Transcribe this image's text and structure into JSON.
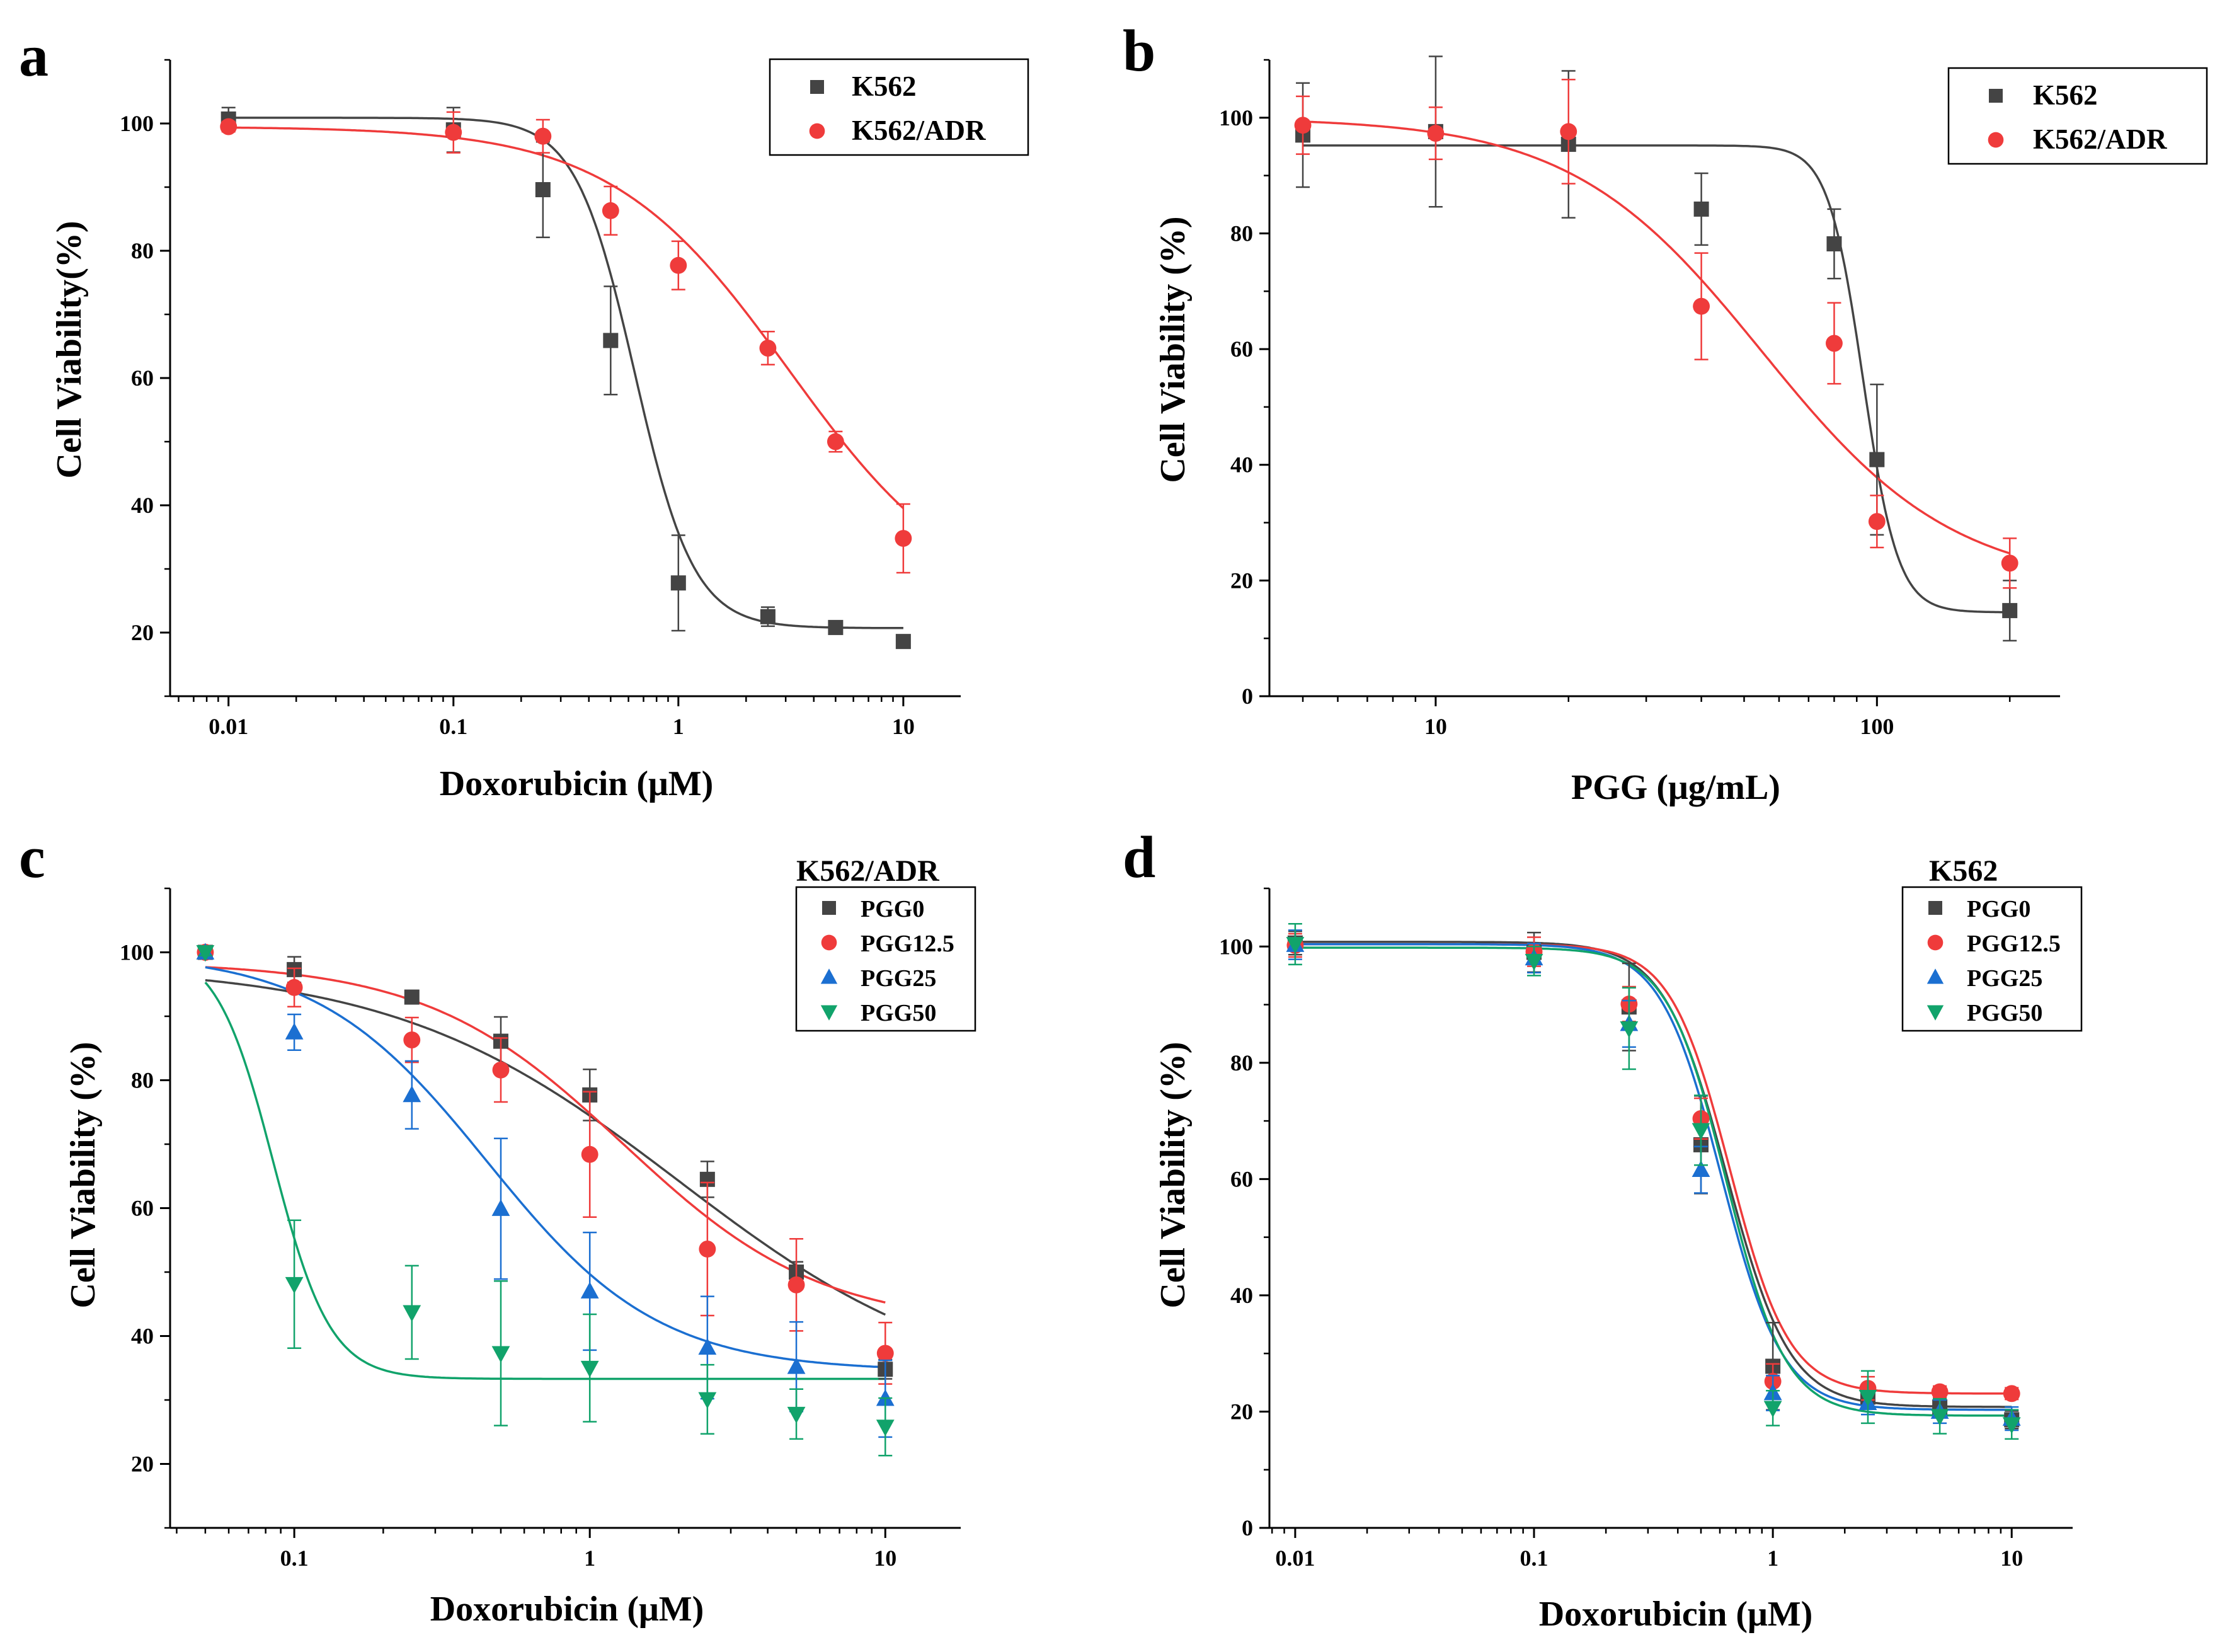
{
  "colors": {
    "K562": "#444444",
    "K562_ADR": "#ef3b3b",
    "PGG0": "#444444",
    "PGG12.5": "#ef3b3b",
    "PGG25": "#1b6fd1",
    "PGG50": "#11a36b"
  },
  "chart_data": [
    {
      "panel": "a",
      "type": "scatter",
      "xscale": "log",
      "xlabel": "Doxorubicin (μM)",
      "ylabel": "Cell Viability(%)",
      "xlim": [
        0.0055,
        18
      ],
      "ylim": [
        10,
        110
      ],
      "xticks": [
        0.01,
        0.1,
        1,
        10
      ],
      "xtick_labels": [
        "0.01",
        "0.1",
        "1",
        "10"
      ],
      "yticks": [
        20,
        40,
        60,
        80,
        100
      ],
      "ytick_labels": [
        "20",
        "40",
        "60",
        "80",
        "100"
      ],
      "legend_title": "",
      "legend_position": "top-right",
      "series": [
        {
          "name": "K562",
          "marker": "square",
          "color": "#444444",
          "x": [
            0.01,
            0.1,
            0.25,
            0.5,
            1,
            2.5,
            5,
            10
          ],
          "y": [
            100.7,
            99.0,
            89.6,
            65.9,
            27.8,
            22.5,
            20.8,
            18.6
          ],
          "err": [
            1.8,
            3.5,
            7.5,
            8.5,
            7.5,
            1.5,
            0.6,
            0.6
          ],
          "fit": {
            "bottom": 20.7,
            "top": 100.9,
            "ec50": 0.64,
            "hill": 3.3
          }
        },
        {
          "name": "K562/ADR",
          "marker": "circle",
          "color": "#ef3b3b",
          "x": [
            0.01,
            0.1,
            0.25,
            0.5,
            1,
            2.5,
            5,
            10
          ],
          "y": [
            99.5,
            98.6,
            98.0,
            86.3,
            77.7,
            64.7,
            50.0,
            34.8
          ],
          "err": [
            0.8,
            3.2,
            2.6,
            3.8,
            3.8,
            2.6,
            1.6,
            5.4
          ],
          "fit": {
            "bottom": 23.0,
            "top": 99.5,
            "ec50": 3.1,
            "hill": 1.1
          }
        }
      ]
    },
    {
      "panel": "b",
      "type": "scatter",
      "xscale": "log",
      "xlabel": "PGG (μg/mL)",
      "ylabel": "Cell Viability (%)",
      "xlim": [
        4.2,
        260
      ],
      "ylim": [
        0,
        110
      ],
      "xticks": [
        10,
        100
      ],
      "xtick_labels": [
        "10",
        "100"
      ],
      "yticks": [
        0,
        20,
        40,
        60,
        80,
        100
      ],
      "ytick_labels": [
        "0",
        "20",
        "40",
        "60",
        "80",
        "100"
      ],
      "legend_title": "",
      "legend_position": "top-right",
      "series": [
        {
          "name": "K562",
          "marker": "square",
          "color": "#444444",
          "x": [
            5,
            10,
            20,
            40,
            80,
            100,
            200
          ],
          "y": [
            97.0,
            97.6,
            95.4,
            84.2,
            78.2,
            40.9,
            14.8
          ],
          "err": [
            9.0,
            13.0,
            12.7,
            6.2,
            6.0,
            13.0,
            5.2
          ],
          "fit": {
            "bottom": 14.5,
            "top": 95.2,
            "ec50": 93,
            "hill": 11
          }
        },
        {
          "name": "K562/ADR",
          "marker": "circle",
          "color": "#ef3b3b",
          "x": [
            5,
            10,
            20,
            40,
            80,
            100,
            200
          ],
          "y": [
            98.7,
            97.3,
            97.6,
            67.4,
            61.0,
            30.2,
            23.0
          ],
          "err": [
            5.0,
            4.5,
            9.0,
            9.2,
            7.0,
            4.5,
            4.3
          ],
          "fit": {
            "bottom": 19.0,
            "top": 100.0,
            "ec50": 55,
            "hill": 2.0
          }
        }
      ]
    },
    {
      "panel": "c",
      "type": "scatter",
      "xscale": "log",
      "xlabel": "Doxorubicin (μM)",
      "ylabel": "Cell Viability (%)",
      "xlim": [
        0.038,
        18
      ],
      "ylim": [
        10,
        110
      ],
      "xticks": [
        0.1,
        1,
        10
      ],
      "xtick_labels": [
        "0.1",
        "1",
        "10"
      ],
      "yticks": [
        20,
        40,
        60,
        80,
        100
      ],
      "ytick_labels": [
        "20",
        "40",
        "60",
        "80",
        "100"
      ],
      "legend_title": "K562/ADR",
      "legend_position": "top-right",
      "series": [
        {
          "name": "PGG0",
          "marker": "square",
          "color": "#444444",
          "x": [
            0.05,
            0.1,
            0.25,
            0.5,
            1,
            2.5,
            5,
            10
          ],
          "y": [
            100.0,
            97.3,
            93.0,
            86.1,
            77.7,
            64.5,
            50.0,
            34.8
          ],
          "err": [
            0.5,
            2.0,
            0.8,
            3.8,
            4.0,
            2.8,
            1.6,
            1.5
          ],
          "fit": {
            "bottom": 30.5,
            "top": 98.0,
            "ec50": 2.0,
            "hill": 0.9
          }
        },
        {
          "name": "PGG12.5",
          "marker": "circle",
          "color": "#ef3b3b",
          "x": [
            0.05,
            0.1,
            0.25,
            0.5,
            1,
            2.5,
            5,
            10
          ],
          "y": [
            100.0,
            94.5,
            86.3,
            81.6,
            68.4,
            53.6,
            48.0,
            37.3
          ],
          "err": [
            0.5,
            3.0,
            3.5,
            5.0,
            9.8,
            10.4,
            7.2,
            4.8
          ],
          "fit": {
            "bottom": 41.5,
            "top": 98.5,
            "ec50": 1.3,
            "hill": 1.3
          }
        },
        {
          "name": "PGG25",
          "marker": "triangle-up",
          "color": "#1b6fd1",
          "x": [
            0.05,
            0.1,
            0.25,
            0.5,
            1,
            2.5,
            5,
            10
          ],
          "y": [
            100.0,
            87.5,
            77.7,
            59.9,
            47.0,
            38.2,
            35.2,
            30.2
          ],
          "err": [
            0.5,
            2.8,
            5.3,
            11.0,
            9.2,
            8.0,
            7.0,
            6.0
          ],
          "fit": {
            "bottom": 34.5,
            "top": 100.0,
            "ec50": 0.45,
            "hill": 1.5
          }
        },
        {
          "name": "PGG50",
          "marker": "triangle-down",
          "color": "#11a36b",
          "x": [
            0.05,
            0.1,
            0.25,
            0.5,
            1,
            2.5,
            5,
            10
          ],
          "y": [
            100.0,
            48.1,
            43.7,
            37.3,
            35.0,
            30.1,
            27.8,
            25.8
          ],
          "err": [
            0.5,
            10.0,
            7.3,
            11.3,
            8.4,
            5.4,
            3.9,
            4.5
          ],
          "fit": {
            "bottom": 33.3,
            "top": 101.0,
            "ec50": 0.085,
            "hill": 4.5
          }
        }
      ]
    },
    {
      "panel": "d",
      "type": "scatter",
      "xscale": "log",
      "xlabel": "Doxorubicin (μM)",
      "ylabel": "Cell Viability (%)",
      "xlim": [
        0.0078,
        18
      ],
      "ylim": [
        0,
        110
      ],
      "xticks": [
        0.01,
        0.1,
        1,
        10
      ],
      "xtick_labels": [
        "0.01",
        "0.1",
        "1",
        "10"
      ],
      "yticks": [
        0,
        20,
        40,
        60,
        80,
        100
      ],
      "ytick_labels": [
        "0",
        "20",
        "40",
        "60",
        "80",
        "100"
      ],
      "legend_title": "K562",
      "legend_position": "top-right",
      "series": [
        {
          "name": "PGG0",
          "marker": "square",
          "color": "#444444",
          "x": [
            0.01,
            0.1,
            0.25,
            0.5,
            1,
            2.5,
            5,
            10
          ],
          "y": [
            100.6,
            99.0,
            89.6,
            65.9,
            27.8,
            22.5,
            20.8,
            18.6
          ],
          "err": [
            2.0,
            3.4,
            7.5,
            8.4,
            7.5,
            2.0,
            1.5,
            1.5
          ],
          "fit": {
            "bottom": 20.8,
            "top": 100.8,
            "ec50": 0.64,
            "hill": 3.3
          }
        },
        {
          "name": "PGG12.5",
          "marker": "circle",
          "color": "#ef3b3b",
          "x": [
            0.01,
            0.1,
            0.25,
            0.5,
            1,
            2.5,
            5,
            10
          ],
          "y": [
            100.2,
            99.1,
            90.1,
            70.4,
            25.2,
            24.0,
            23.4,
            23.1
          ],
          "err": [
            2.0,
            2.5,
            3.0,
            3.5,
            3.0,
            2.0,
            1.0,
            1.0
          ],
          "fit": {
            "bottom": 23.1,
            "top": 100.4,
            "ec50": 0.66,
            "hill": 3.5
          }
        },
        {
          "name": "PGG25",
          "marker": "triangle-up",
          "color": "#1b6fd1",
          "x": [
            0.01,
            0.1,
            0.25,
            0.5,
            1,
            2.5,
            5,
            10
          ],
          "y": [
            100.3,
            98.0,
            86.7,
            61.6,
            23.2,
            21.5,
            20.0,
            18.8
          ],
          "err": [
            2.5,
            2.5,
            4.0,
            4.0,
            3.0,
            2.0,
            2.0,
            2.0
          ],
          "fit": {
            "bottom": 20.3,
            "top": 100.4,
            "ec50": 0.61,
            "hill": 3.4
          }
        },
        {
          "name": "PGG50",
          "marker": "triangle-down",
          "color": "#11a36b",
          "x": [
            0.01,
            0.1,
            0.25,
            0.5,
            1,
            2.5,
            5,
            10
          ],
          "y": [
            100.4,
            97.5,
            85.9,
            68.4,
            20.6,
            22.5,
            19.2,
            17.8
          ],
          "err": [
            3.5,
            2.5,
            7.0,
            6.0,
            3.0,
            4.5,
            3.0,
            2.5
          ],
          "fit": {
            "bottom": 19.3,
            "top": 99.8,
            "ec50": 0.64,
            "hill": 3.5
          }
        }
      ]
    }
  ]
}
